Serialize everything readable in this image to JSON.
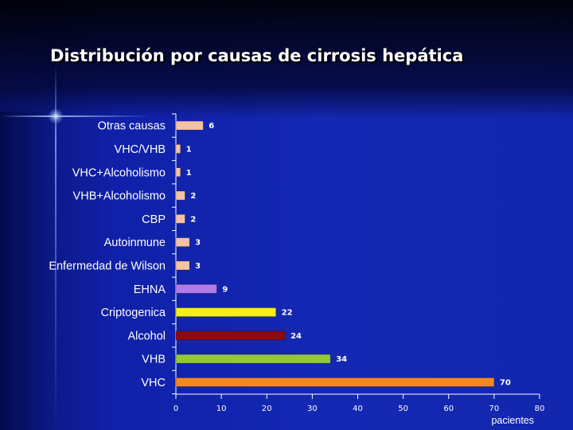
{
  "slide": {
    "title": "Distribución por causas de cirrosis hepática"
  },
  "chart_data": {
    "type": "bar",
    "orientation": "horizontal",
    "title": "Distribución por causas de cirrosis hepática",
    "xlabel": "pacientes",
    "ylabel": "",
    "xlim": [
      0,
      80
    ],
    "xticks": [
      0,
      10,
      20,
      30,
      40,
      50,
      60,
      70,
      80
    ],
    "grid": false,
    "categories": [
      "Otras causas",
      "VHC/VHB",
      "VHC+Alcoholismo",
      "VHB+Alcoholismo",
      "CBP",
      "Autoinmune",
      "Enfermedad de Wilson",
      "EHNA",
      "Criptogenica",
      "Alcohol",
      "VHB",
      "VHC"
    ],
    "values": [
      6,
      1,
      1,
      2,
      2,
      3,
      3,
      9,
      22,
      24,
      34,
      70
    ],
    "colors": [
      "#f4c2a4",
      "#f4c2a4",
      "#f4c2a4",
      "#f4c2a4",
      "#f4c2a4",
      "#f4c2a4",
      "#f4c2a4",
      "#b27be8",
      "#f5f00c",
      "#8c0a12",
      "#92c83a",
      "#f4891c"
    ]
  }
}
